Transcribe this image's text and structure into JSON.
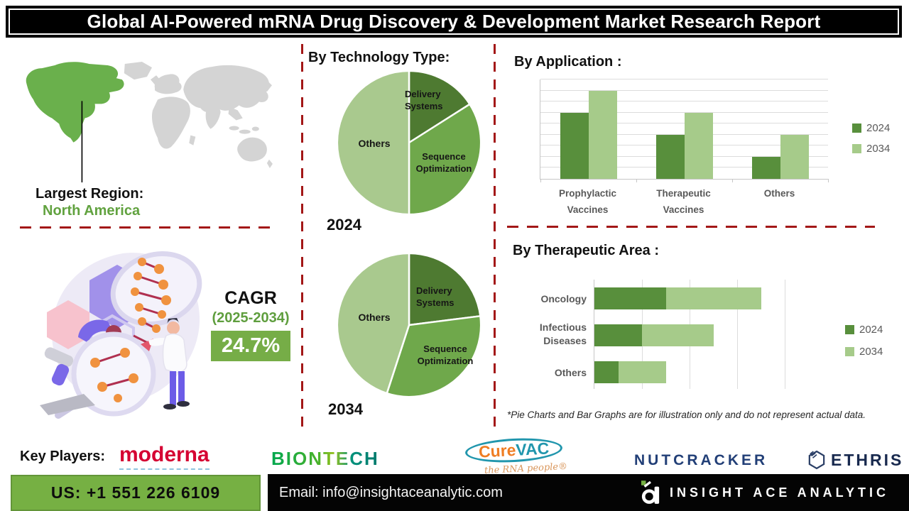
{
  "title": "Global AI-Powered mRNA Drug Discovery & Development Market Research Report",
  "region": {
    "label": "Largest Region:",
    "value": "North America"
  },
  "cagr": {
    "label": "CAGR",
    "period": "(2025-2034)",
    "value": "24.7%"
  },
  "sections": {
    "technology": {
      "heading": "By Technology Type:"
    },
    "application": {
      "heading": "By Application :"
    },
    "therapeutic": {
      "heading": "By Therapeutic Area :"
    }
  },
  "chart_data": [
    {
      "type": "pie",
      "name": "technology-type-2024",
      "title": "By Technology Type:",
      "year": "2024",
      "slices": [
        {
          "label": "Delivery Systems",
          "value": 16,
          "color": "#4e7a31"
        },
        {
          "label": "Sequence Optimization",
          "value": 34,
          "color": "#6fa84b"
        },
        {
          "label": "Others",
          "value": 50,
          "color": "#a9c98e"
        }
      ],
      "note": "illustrative shares, clockwise from 12 o'clock"
    },
    {
      "type": "pie",
      "name": "technology-type-2034",
      "title": "By Technology Type:",
      "year": "2034",
      "slices": [
        {
          "label": "Delivery Systems",
          "value": 23,
          "color": "#4e7a31"
        },
        {
          "label": "Sequence Optimization",
          "value": 32,
          "color": "#6fa84b"
        },
        {
          "label": "Others",
          "value": 45,
          "color": "#a9c98e"
        }
      ],
      "note": "illustrative shares, clockwise from 12 o'clock"
    },
    {
      "type": "bar",
      "name": "application",
      "title": "By Application :",
      "categories": [
        "Prophylactic Vaccines",
        "Therapeutic Vaccines",
        "Others"
      ],
      "series": [
        {
          "name": "2024",
          "color": "#588f3c",
          "values": [
            6,
            4,
            2
          ]
        },
        {
          "name": "2034",
          "color": "#a6cb8a",
          "values": [
            8,
            6,
            4
          ]
        }
      ],
      "ylim": [
        0,
        9
      ],
      "grid": true,
      "legend_position": "right",
      "ylabel": "",
      "xlabel": ""
    },
    {
      "type": "stacked-hbar",
      "name": "therapeutic-area",
      "title": "By Therapeutic Area :",
      "categories": [
        "Oncology",
        "Infectious Diseases",
        "Others"
      ],
      "series": [
        {
          "name": "2024",
          "color": "#588f3c",
          "values": [
            1.5,
            1.0,
            0.5
          ]
        },
        {
          "name": "2034",
          "color": "#a6cb8a",
          "values": [
            2.0,
            1.5,
            1.0
          ]
        }
      ],
      "xlim": [
        0,
        4
      ],
      "grid": true,
      "legend_position": "right"
    }
  ],
  "footnote": "*Pie Charts and Bar Graphs are for illustration only and do not represent actual data.",
  "key_players": {
    "label": "Key Players:",
    "moderna": "moderna",
    "biontech": "BIONTECH",
    "curevac": {
      "pre": "Cure",
      "post": "VAC",
      "tagline": "the RNA people®"
    },
    "nutcracker": "NUTCRACKER",
    "ethris": "ETHRIS"
  },
  "contact": {
    "phone": "US: +1 551 226 6109",
    "email": "Email: info@insightaceanalytic.com",
    "brand": "INSIGHT ACE ANALYTIC"
  },
  "colors": {
    "accent_green": "#61a23f",
    "cagr_box_green": "#76ad47",
    "bottom_bar_green": "#76b043",
    "series_2024": "#588f3c",
    "series_2034": "#a6cb8a",
    "pie_dark": "#4e7a31",
    "pie_medium": "#6fa84b",
    "pie_light": "#a9c98e",
    "dashed_divider_red": "#a31717",
    "map_gray": "#d4d4d4"
  }
}
